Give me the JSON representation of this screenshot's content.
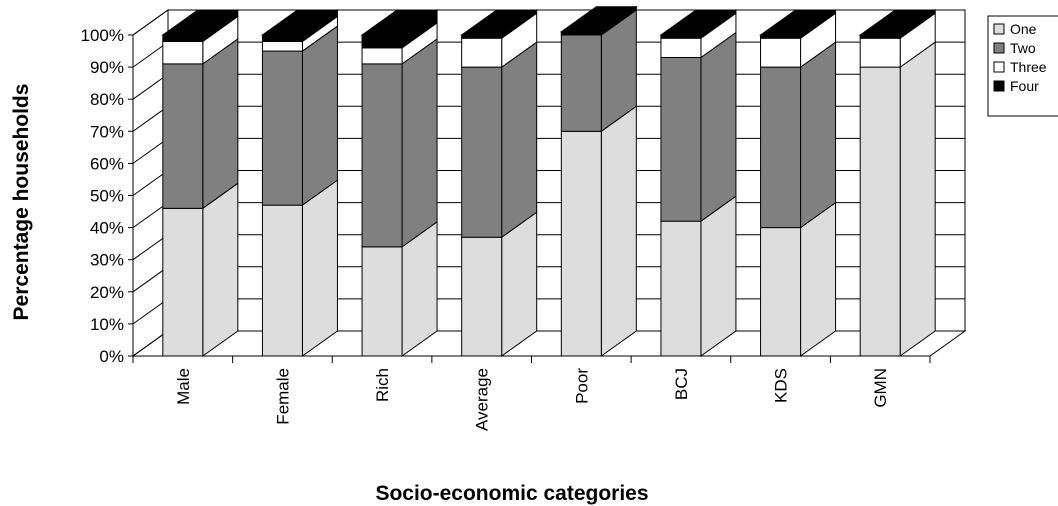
{
  "chart_data": {
    "type": "bar",
    "stacked": true,
    "three_d": true,
    "categories": [
      "Male",
      "Female",
      "Rich",
      "Average",
      "Poor",
      "BCJ",
      "KDS",
      "GMN"
    ],
    "series": [
      {
        "name": "One",
        "color": "#dddddd",
        "values": [
          46,
          47,
          34,
          37,
          70,
          42,
          40,
          90
        ]
      },
      {
        "name": "Two",
        "color": "#808080",
        "values": [
          45,
          48,
          57,
          53,
          30,
          51,
          50,
          0
        ]
      },
      {
        "name": "Three",
        "color": "#ffffff",
        "values": [
          7,
          3,
          5,
          9,
          0,
          6,
          9,
          9
        ]
      },
      {
        "name": "Four",
        "color": "#000000",
        "values": [
          2,
          2,
          4,
          1,
          1,
          1,
          1,
          1
        ]
      }
    ],
    "y_ticks": [
      "0%",
      "10%",
      "20%",
      "30%",
      "40%",
      "50%",
      "60%",
      "70%",
      "80%",
      "90%",
      "100%"
    ],
    "ylim": [
      0,
      100
    ],
    "xlabel": "Socio-economic categories",
    "ylabel": "Percentage households",
    "grid": true,
    "legend_position": "top-right"
  }
}
